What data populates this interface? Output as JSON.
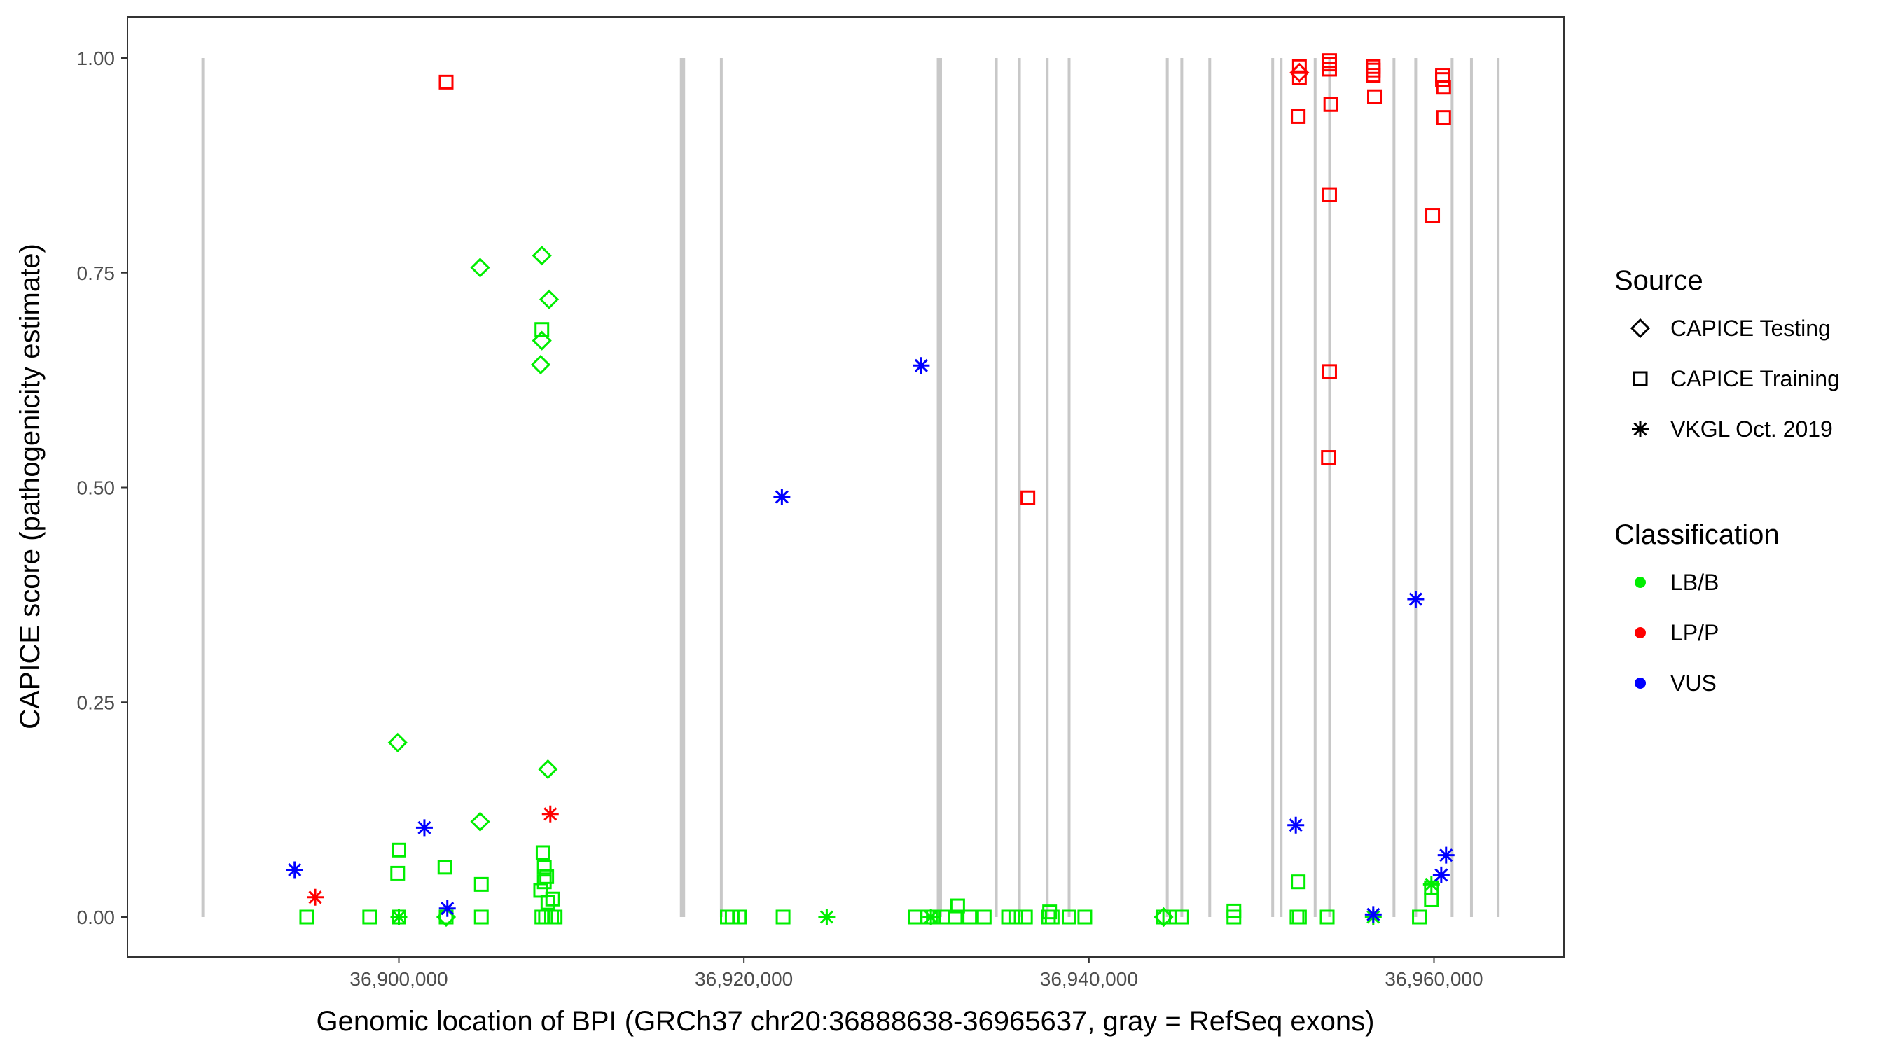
{
  "chart_data": {
    "type": "scatter",
    "xlabel": "Genomic location of BPI (GRCh37 chr20:36888638-36965637, gray = RefSeq exons)",
    "ylabel": "CAPICE score (pathogenicity estimate)",
    "xlim": [
      36887000,
      36967000
    ],
    "ylim": [
      -0.05,
      1.05
    ],
    "x_ticks": [
      36900000,
      36920000,
      36940000,
      36960000
    ],
    "x_tick_labels": [
      "36,900,000",
      "36,920,000",
      "36,940,000",
      "36,960,000"
    ],
    "y_ticks": [
      0,
      0.25,
      0.5,
      0.75,
      1.0
    ],
    "y_tick_labels": [
      "0.00",
      "0.25",
      "0.50",
      "0.75",
      "1.00"
    ],
    "grid": false,
    "exon_color": "#c8c8c8",
    "exons": [
      36888638,
      36916370,
      36916510,
      36918690,
      36931260,
      36931400,
      36934630,
      36935970,
      36937580,
      36938850,
      36944540,
      36945380,
      36947000,
      36950650,
      36951140,
      36953110,
      36953950,
      36957680,
      36958940,
      36961050,
      36962170,
      36963720
    ],
    "legend": {
      "placement": "right",
      "source_title": "Source",
      "source_items": [
        {
          "label": "CAPICE Testing",
          "shape": "diamond"
        },
        {
          "label": "CAPICE Training",
          "shape": "square"
        },
        {
          "label": "VKGL Oct. 2019",
          "shape": "asterisk"
        }
      ],
      "class_title": "Classification",
      "class_items": [
        {
          "label": "LB/B",
          "color": "#00ee00"
        },
        {
          "label": "LP/P",
          "color": "#ff0000"
        },
        {
          "label": "VUS",
          "color": "#0000ff"
        }
      ]
    },
    "series": [
      {
        "source": "CAPICE Training",
        "class": "LB/B",
        "points": [
          [
            36894660,
            0
          ],
          [
            36898310,
            0
          ],
          [
            36900000,
            0
          ],
          [
            36902740,
            0
          ],
          [
            36904780,
            0
          ],
          [
            36908290,
            0
          ],
          [
            36908500,
            0
          ],
          [
            36908850,
            0
          ],
          [
            36909060,
            0
          ],
          [
            36919040,
            0
          ],
          [
            36919320,
            0
          ],
          [
            36919740,
            0
          ],
          [
            36922270,
            0
          ],
          [
            36929930,
            0
          ],
          [
            36930630,
            0
          ],
          [
            36930980,
            0
          ],
          [
            36931540,
            0
          ],
          [
            36932250,
            0
          ],
          [
            36933090,
            0
          ],
          [
            36933930,
            0
          ],
          [
            36935340,
            0
          ],
          [
            36935760,
            0
          ],
          [
            36936320,
            0
          ],
          [
            36937650,
            0
          ],
          [
            36937870,
            0
          ],
          [
            36938850,
            0
          ],
          [
            36939760,
            0
          ],
          [
            36944330,
            0
          ],
          [
            36944680,
            0
          ],
          [
            36945380,
            0
          ],
          [
            36948400,
            0
          ],
          [
            36948400,
            0.007
          ],
          [
            36952060,
            0
          ],
          [
            36952200,
            0
          ],
          [
            36953810,
            0
          ],
          [
            36959150,
            0
          ],
          [
            36959850,
            0.02
          ],
          [
            36959850,
            0.034
          ],
          [
            36900000,
            0.078
          ],
          [
            36899930,
            0.051
          ],
          [
            36902670,
            0.058
          ],
          [
            36904780,
            0.038
          ],
          [
            36908220,
            0.031
          ],
          [
            36908360,
            0.075
          ],
          [
            36908430,
            0.058
          ],
          [
            36908570,
            0.047
          ],
          [
            36908430,
            0.041
          ],
          [
            36908920,
            0.021
          ],
          [
            36908640,
            0.017
          ],
          [
            36908290,
            0.684
          ],
          [
            36932390,
            0.013
          ],
          [
            36937720,
            0.006
          ],
          [
            36952130,
            0.041
          ]
        ]
      },
      {
        "source": "CAPICE Testing",
        "class": "LB/B",
        "points": [
          [
            36904710,
            0.756
          ],
          [
            36908290,
            0.77
          ],
          [
            36908710,
            0.719
          ],
          [
            36908290,
            0.671
          ],
          [
            36908220,
            0.643
          ],
          [
            36899930,
            0.203
          ],
          [
            36908640,
            0.172
          ],
          [
            36904710,
            0.111
          ],
          [
            36902740,
            0
          ],
          [
            36944330,
            0
          ]
        ]
      },
      {
        "source": "VKGL Oct. 2019",
        "class": "LB/B",
        "points": [
          [
            36900000,
            0
          ],
          [
            36924800,
            0
          ],
          [
            36930840,
            0
          ],
          [
            36959850,
            0.038
          ],
          [
            36956480,
            0
          ]
        ]
      },
      {
        "source": "CAPICE Training",
        "class": "LP/P",
        "points": [
          [
            36902740,
            0.972
          ],
          [
            36936460,
            0.488
          ],
          [
            36952200,
            0.99
          ],
          [
            36952200,
            0.977
          ],
          [
            36952130,
            0.932
          ],
          [
            36953950,
            0.997
          ],
          [
            36953950,
            0.993
          ],
          [
            36953950,
            0.987
          ],
          [
            36954020,
            0.946
          ],
          [
            36953950,
            0.841
          ],
          [
            36953950,
            0.635
          ],
          [
            36953880,
            0.535
          ],
          [
            36956480,
            0.99
          ],
          [
            36956480,
            0.986
          ],
          [
            36956480,
            0.98
          ],
          [
            36956550,
            0.955
          ],
          [
            36960490,
            0.98
          ],
          [
            36960490,
            0.975
          ],
          [
            36960560,
            0.966
          ],
          [
            36960560,
            0.931
          ],
          [
            36959920,
            0.817
          ]
        ]
      },
      {
        "source": "CAPICE Testing",
        "class": "LP/P",
        "points": [
          [
            36952200,
            0.983
          ]
        ]
      },
      {
        "source": "VKGL Oct. 2019",
        "class": "LP/P",
        "points": [
          [
            36895150,
            0.023
          ],
          [
            36908780,
            0.12
          ]
        ]
      },
      {
        "source": "VKGL Oct. 2019",
        "class": "VUS",
        "points": [
          [
            36893960,
            0.055
          ],
          [
            36901480,
            0.104
          ],
          [
            36902810,
            0.01
          ],
          [
            36922200,
            0.489
          ],
          [
            36930280,
            0.642
          ],
          [
            36951990,
            0.107
          ],
          [
            36958940,
            0.37
          ],
          [
            36956480,
            0.003
          ],
          [
            36960420,
            0.049
          ],
          [
            36960700,
            0.072
          ]
        ]
      }
    ]
  }
}
